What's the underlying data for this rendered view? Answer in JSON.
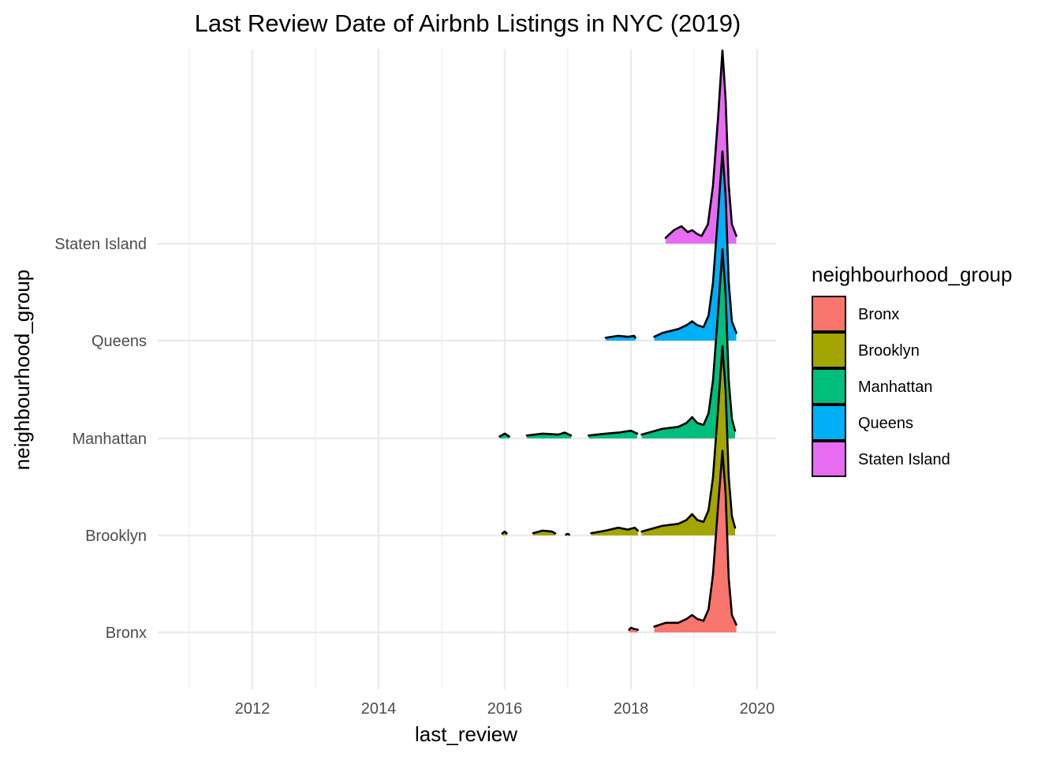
{
  "chart_data": {
    "type": "ridgeline density",
    "title": "Last Review Date of Airbnb Listings in NYC (2019)",
    "xlabel": "last_review",
    "ylabel": "neighbourhood_group",
    "x_ticks": [
      2012,
      2014,
      2016,
      2018,
      2020
    ],
    "xlim": [
      2010.5,
      2020.3
    ],
    "categories": [
      "Bronx",
      "Brooklyn",
      "Manhattan",
      "Queens",
      "Staten Island"
    ],
    "grid": true,
    "legend": {
      "title": "neighbourhood_group",
      "position": "right",
      "entries": [
        "Bronx",
        "Brooklyn",
        "Manhattan",
        "Queens",
        "Staten Island"
      ]
    },
    "colors": {
      "Bronx": "#F8766D",
      "Brooklyn": "#A3A500",
      "Manhattan": "#00BF7D",
      "Queens": "#00B0F6",
      "Staten Island": "#E76BF3"
    },
    "series": [
      {
        "name": "Bronx",
        "segments": [
          [
            [
              2017.97,
              0.014
            ],
            [
              2018.0,
              0.024
            ],
            [
              2018.05,
              0.018
            ],
            [
              2018.11,
              0.014
            ]
          ],
          [
            [
              2018.37,
              0.03
            ],
            [
              2018.55,
              0.05
            ],
            [
              2018.75,
              0.05
            ],
            [
              2018.88,
              0.07
            ],
            [
              2018.97,
              0.09
            ],
            [
              2019.05,
              0.07
            ],
            [
              2019.15,
              0.06
            ],
            [
              2019.23,
              0.12
            ],
            [
              2019.3,
              0.3
            ],
            [
              2019.38,
              0.65
            ],
            [
              2019.45,
              0.94
            ],
            [
              2019.5,
              0.72
            ],
            [
              2019.55,
              0.28
            ],
            [
              2019.6,
              0.09
            ],
            [
              2019.67,
              0.04
            ]
          ]
        ]
      },
      {
        "name": "Brooklyn",
        "segments": [
          [
            [
              2015.96,
              0.01
            ],
            [
              2016.0,
              0.02
            ],
            [
              2016.03,
              0.01
            ]
          ],
          [
            [
              2016.45,
              0.012
            ],
            [
              2016.6,
              0.025
            ],
            [
              2016.75,
              0.02
            ],
            [
              2016.8,
              0.01
            ]
          ],
          [
            [
              2016.97,
              0.004
            ],
            [
              2017.0,
              0.008
            ],
            [
              2017.02,
              0.004
            ]
          ],
          [
            [
              2017.37,
              0.012
            ],
            [
              2017.6,
              0.025
            ],
            [
              2017.8,
              0.04
            ],
            [
              2017.95,
              0.03
            ],
            [
              2018.06,
              0.04
            ],
            [
              2018.11,
              0.025
            ]
          ],
          [
            [
              2018.17,
              0.02
            ],
            [
              2018.5,
              0.05
            ],
            [
              2018.75,
              0.06
            ],
            [
              2018.88,
              0.08
            ],
            [
              2018.97,
              0.11
            ],
            [
              2019.05,
              0.08
            ],
            [
              2019.15,
              0.07
            ],
            [
              2019.23,
              0.13
            ],
            [
              2019.3,
              0.3
            ],
            [
              2019.38,
              0.65
            ],
            [
              2019.45,
              0.98
            ],
            [
              2019.5,
              0.75
            ],
            [
              2019.55,
              0.3
            ],
            [
              2019.6,
              0.1
            ],
            [
              2019.65,
              0.04
            ]
          ]
        ]
      },
      {
        "name": "Manhattan",
        "segments": [
          [
            [
              2015.92,
              0.01
            ],
            [
              2016.0,
              0.025
            ],
            [
              2016.07,
              0.01
            ]
          ],
          [
            [
              2016.35,
              0.015
            ],
            [
              2016.6,
              0.025
            ],
            [
              2016.85,
              0.02
            ],
            [
              2016.95,
              0.03
            ],
            [
              2017.05,
              0.015
            ]
          ],
          [
            [
              2017.33,
              0.015
            ],
            [
              2017.6,
              0.025
            ],
            [
              2017.8,
              0.03
            ],
            [
              2018.0,
              0.04
            ],
            [
              2018.1,
              0.025
            ]
          ],
          [
            [
              2018.17,
              0.02
            ],
            [
              2018.5,
              0.05
            ],
            [
              2018.75,
              0.06
            ],
            [
              2018.88,
              0.08
            ],
            [
              2018.97,
              0.11
            ],
            [
              2019.05,
              0.08
            ],
            [
              2019.15,
              0.07
            ],
            [
              2019.23,
              0.13
            ],
            [
              2019.3,
              0.3
            ],
            [
              2019.38,
              0.65
            ],
            [
              2019.45,
              0.98
            ],
            [
              2019.5,
              0.75
            ],
            [
              2019.55,
              0.3
            ],
            [
              2019.6,
              0.1
            ],
            [
              2019.65,
              0.04
            ]
          ]
        ]
      },
      {
        "name": "Queens",
        "segments": [
          [
            [
              2017.6,
              0.015
            ],
            [
              2017.8,
              0.025
            ],
            [
              2017.95,
              0.02
            ],
            [
              2018.05,
              0.025
            ],
            [
              2018.07,
              0.015
            ]
          ],
          [
            [
              2018.37,
              0.02
            ],
            [
              2018.5,
              0.04
            ],
            [
              2018.75,
              0.06
            ],
            [
              2018.88,
              0.08
            ],
            [
              2018.97,
              0.1
            ],
            [
              2019.05,
              0.08
            ],
            [
              2019.15,
              0.07
            ],
            [
              2019.23,
              0.13
            ],
            [
              2019.3,
              0.3
            ],
            [
              2019.38,
              0.65
            ],
            [
              2019.45,
              0.98
            ],
            [
              2019.5,
              0.75
            ],
            [
              2019.55,
              0.3
            ],
            [
              2019.6,
              0.1
            ],
            [
              2019.67,
              0.04
            ]
          ]
        ]
      },
      {
        "name": "Staten Island",
        "segments": [
          [
            [
              2018.55,
              0.03
            ],
            [
              2018.68,
              0.07
            ],
            [
              2018.8,
              0.09
            ],
            [
              2018.9,
              0.06
            ],
            [
              2018.97,
              0.07
            ],
            [
              2019.05,
              0.05
            ],
            [
              2019.12,
              0.04
            ],
            [
              2019.22,
              0.1
            ],
            [
              2019.3,
              0.3
            ],
            [
              2019.38,
              0.65
            ],
            [
              2019.45,
              1.0
            ],
            [
              2019.5,
              0.75
            ],
            [
              2019.55,
              0.3
            ],
            [
              2019.6,
              0.1
            ],
            [
              2019.67,
              0.04
            ]
          ]
        ]
      }
    ]
  }
}
